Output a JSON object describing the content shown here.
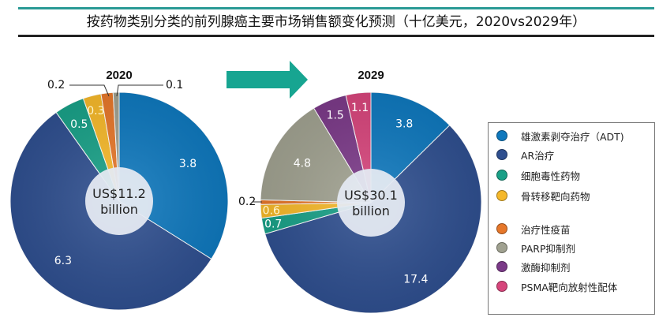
{
  "title": "按药物类别分类的前列腺癌主要市场销售额变化预测（十亿美元，2020vs2029年）",
  "colors": {
    "title_top_line": "#2a9a95",
    "arrow": "#17a591",
    "categories": [
      "#0f78bd",
      "#2f4f8f",
      "#19a087",
      "#f5b82a",
      "#e6772a",
      "#a0a190",
      "#7b3a88",
      "#d6457b"
    ]
  },
  "legend": {
    "items": [
      {
        "label": "雄激素剥夺治疗（ADT)"
      },
      {
        "label": "AR治疗"
      },
      {
        "label": "细胞毒性药物"
      },
      {
        "label": "骨转移靶向药物"
      },
      {
        "label": "治疗性疫苗"
      },
      {
        "label": "PARP抑制剂"
      },
      {
        "label": "激酶抑制剂"
      },
      {
        "label": "PSMA靶向放射性配体"
      }
    ]
  },
  "chart_data": [
    {
      "type": "pie",
      "title": "2020",
      "center_label": [
        "US$11.2",
        "billion"
      ],
      "categories": [
        "雄激素剥夺治疗（ADT)",
        "AR治疗",
        "细胞毒性药物",
        "骨转移靶向药物",
        "治疗性疫苗",
        "PARP抑制剂"
      ],
      "values": [
        3.8,
        6.3,
        0.5,
        0.3,
        0.2,
        0.1
      ],
      "labels": [
        "3.8",
        "6.3",
        "0.5",
        "0.3",
        "0.2",
        "0.1"
      ],
      "total": 11.2
    },
    {
      "type": "pie",
      "title": "2029",
      "center_label": [
        "US$30.1",
        "billion"
      ],
      "categories": [
        "雄激素剥夺治疗（ADT)",
        "AR治疗",
        "细胞毒性药物",
        "骨转移靶向药物",
        "治疗性疫苗",
        "PARP抑制剂",
        "激酶抑制剂",
        "PSMA靶向放射性配体"
      ],
      "values": [
        3.8,
        17.4,
        0.7,
        0.6,
        0.2,
        4.8,
        1.5,
        1.1
      ],
      "labels": [
        "3.8",
        "17.4",
        "0.7",
        "0.6",
        "0.2",
        "4.8",
        "1.5",
        "1.1"
      ],
      "total": 30.1
    }
  ]
}
